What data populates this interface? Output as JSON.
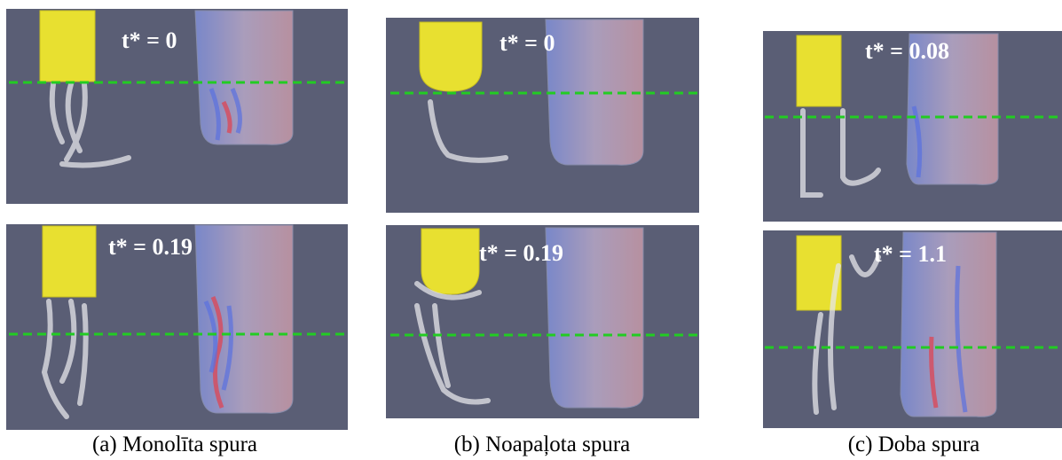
{
  "columns": [
    {
      "caption": "(a) Monolīta spura",
      "frames": [
        {
          "label": "t* = 0"
        },
        {
          "label": "t* = 0.19"
        }
      ]
    },
    {
      "caption": "(b) Noapaļota spura",
      "frames": [
        {
          "label": "t* = 0"
        },
        {
          "label": "t* = 0.19"
        }
      ]
    },
    {
      "caption": "(c) Doba spura",
      "frames": [
        {
          "label": "t* = 0.08"
        },
        {
          "label": "t* = 1.1"
        }
      ]
    }
  ]
}
